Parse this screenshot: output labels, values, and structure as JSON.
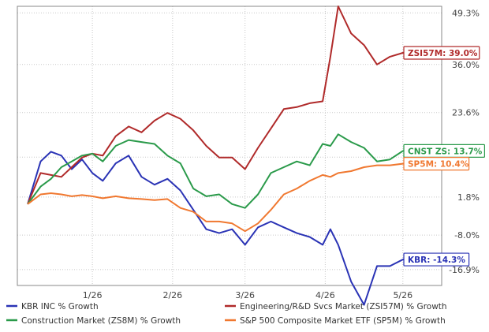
{
  "chart_data": {
    "type": "line",
    "x": [
      "2026-01-01",
      "2026-01-06",
      "2026-01-10",
      "2026-01-14",
      "2026-01-18",
      "2026-01-22",
      "2026-01-26",
      "2026-01-30",
      "2026-02-04",
      "2026-02-09",
      "2026-02-14",
      "2026-02-19",
      "2026-02-24",
      "2026-03-01",
      "2026-03-06",
      "2026-03-11",
      "2026-03-16",
      "2026-03-21",
      "2026-03-26",
      "2026-03-31",
      "2026-04-05",
      "2026-04-10",
      "2026-04-15",
      "2026-04-20",
      "2026-04-25",
      "2026-04-28",
      "2026-05-01",
      "2026-05-06",
      "2026-05-11",
      "2026-05-16",
      "2026-05-21",
      "2026-05-26",
      "2026-05-30"
    ],
    "x_ticks": [
      {
        "date": "2026-01-26",
        "label": "1/26"
      },
      {
        "date": "2026-02-26",
        "label": "2/26"
      },
      {
        "date": "2026-03-26",
        "label": "3/26"
      },
      {
        "date": "2026-04-26",
        "label": "4/26"
      },
      {
        "date": "2026-05-26",
        "label": "5/26"
      }
    ],
    "y_ticks": [
      {
        "value": 49.3,
        "label": "49.3%"
      },
      {
        "value": 36.0,
        "label": "36.0%"
      },
      {
        "value": 23.6,
        "label": "23.6%"
      },
      {
        "value": 12.1,
        "label": ""
      },
      {
        "value": 1.8,
        "label": "1.8%"
      },
      {
        "value": -8.0,
        "label": "-8.0%"
      },
      {
        "value": -16.9,
        "label": "-16.9%"
      }
    ],
    "ylim": [
      -21.0,
      51.0
    ],
    "grid": true,
    "legend_position": "bottom",
    "series": [
      {
        "name": "KBR INC % Growth",
        "color": "#2a33b5",
        "end_label": "KBR: -14.3%",
        "values": [
          0.0,
          11.0,
          13.5,
          12.5,
          9.0,
          11.5,
          8.0,
          6.0,
          10.5,
          12.5,
          7.0,
          5.0,
          6.5,
          3.5,
          -1.5,
          -6.5,
          -7.5,
          -6.5,
          -10.5,
          -6.0,
          -4.5,
          -6.0,
          -7.5,
          -8.5,
          -10.5,
          -6.5,
          -10.5,
          -20.0,
          -26.0,
          -16.0,
          -16.0,
          -14.3,
          -14.3
        ]
      },
      {
        "name": "Engineering/R&D Svcs Market (ZSI57M) % Growth",
        "color": "#b02a2a",
        "end_label": "ZSI57M: 39.0%",
        "values": [
          0.0,
          8.0,
          7.5,
          7.0,
          9.5,
          12.0,
          13.0,
          12.5,
          17.5,
          20.0,
          18.5,
          21.5,
          23.5,
          22.0,
          19.0,
          15.0,
          12.0,
          12.0,
          9.0,
          14.5,
          19.5,
          24.5,
          25.0,
          26.0,
          26.5,
          38.0,
          51.0,
          44.0,
          41.0,
          36.0,
          38.0,
          39.0,
          39.0
        ]
      },
      {
        "name": "Construction Market (ZS8M) % Growth",
        "color": "#2a9a4a",
        "end_label": "CNST ZS: 13.7%",
        "values": [
          0.0,
          4.5,
          6.5,
          9.5,
          11.0,
          12.5,
          13.0,
          11.0,
          15.0,
          16.5,
          16.0,
          15.5,
          12.5,
          10.5,
          4.0,
          2.0,
          2.5,
          0.0,
          -1.0,
          2.5,
          8.0,
          9.5,
          11.0,
          10.0,
          15.5,
          15.0,
          18.0,
          16.0,
          14.5,
          11.0,
          11.5,
          13.7,
          13.7
        ]
      },
      {
        "name": "S&P 500 Composite Market ETF (SP5M) % Growth",
        "color": "#f07830",
        "end_label": "SP5M: 10.4%",
        "values": [
          0.0,
          2.5,
          2.8,
          2.5,
          2.0,
          2.3,
          2.0,
          1.5,
          2.0,
          1.5,
          1.3,
          1.0,
          1.3,
          -1.0,
          -2.0,
          -4.5,
          -4.5,
          -5.0,
          -7.0,
          -5.0,
          -1.5,
          2.5,
          4.0,
          6.0,
          7.5,
          7.0,
          8.0,
          8.5,
          9.5,
          10.0,
          10.0,
          10.4,
          10.4
        ]
      }
    ]
  }
}
